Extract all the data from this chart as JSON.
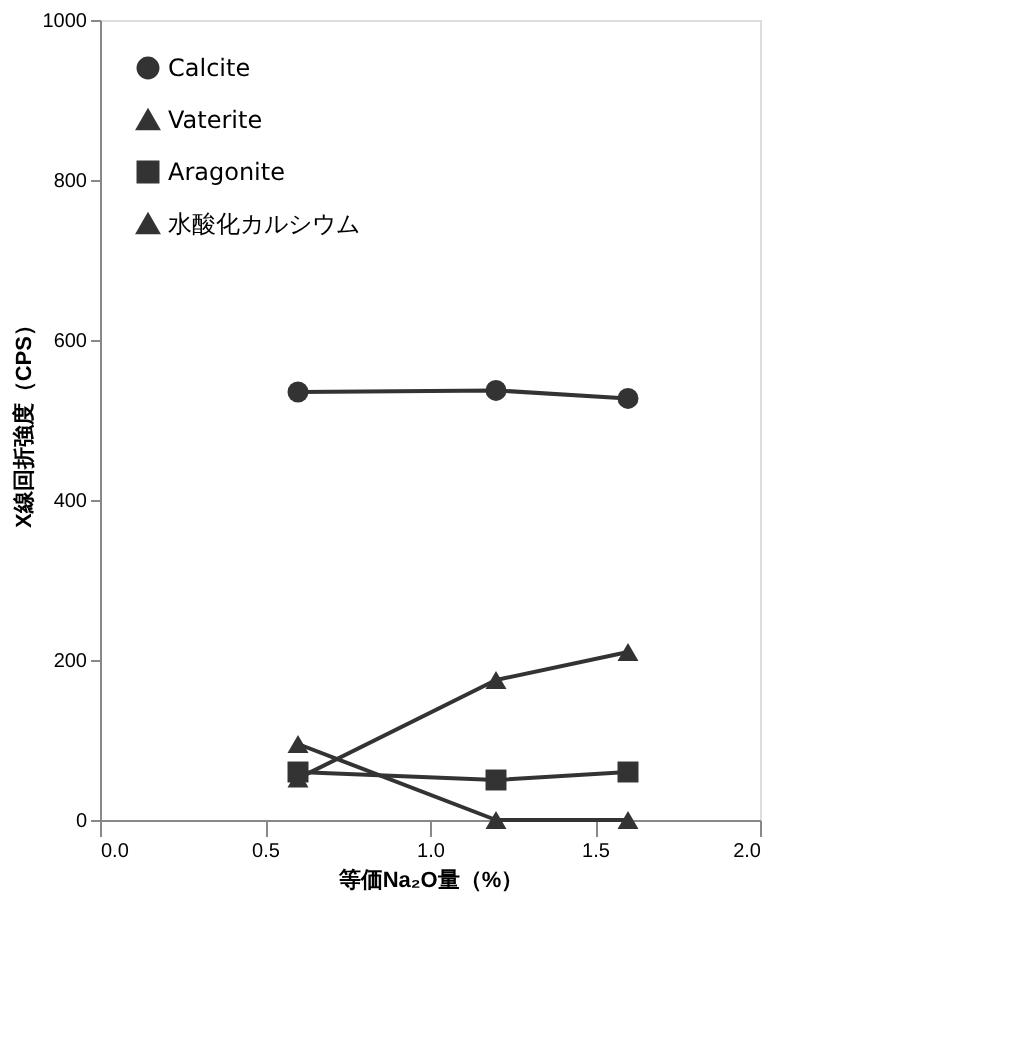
{
  "chart_data": {
    "type": "line",
    "xlabel": "等価Na₂O量（%）",
    "ylabel": "X線回折強度（CPS）",
    "x": [
      0.6,
      1.2,
      1.6
    ],
    "series": [
      {
        "name": "Calcite",
        "color": "#333333",
        "marker": "circle",
        "values": [
          535,
          537,
          527
        ]
      },
      {
        "name": "Vaterite",
        "color": "#333333",
        "marker": "triangle",
        "values": [
          52,
          175,
          210
        ]
      },
      {
        "name": "Aragonite",
        "color": "#333333",
        "marker": "square",
        "values": [
          60,
          50,
          60
        ]
      },
      {
        "name": "水酸化カルシウム",
        "color": "#333333",
        "marker": "triangle",
        "values": [
          95,
          0,
          0
        ]
      }
    ],
    "xlim": [
      0.0,
      2.0
    ],
    "xticks": [
      {
        "value": 0,
        "label": "0.0"
      },
      0.5,
      {
        "value": 1,
        "label": "1.0"
      },
      1.5,
      {
        "value": 2,
        "label": "2.0"
      }
    ],
    "ylim": [
      0,
      1000
    ],
    "yticks": [
      0,
      200,
      400,
      600,
      800,
      1000
    ],
    "grid": false,
    "legend": "top left",
    "line_style": "solid"
  }
}
